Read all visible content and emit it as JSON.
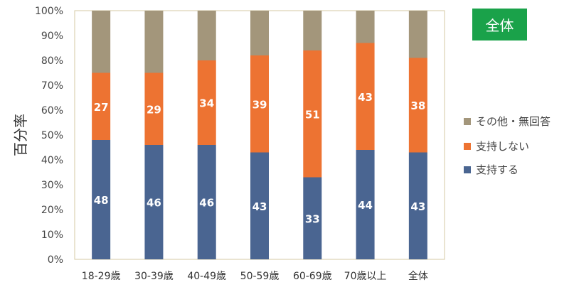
{
  "badge": {
    "label": "全体",
    "color": "#1aa24a"
  },
  "chart_data": {
    "type": "bar",
    "stacked": true,
    "ylabel": "百分率",
    "ylim": [
      0,
      100
    ],
    "yticks": [
      "0%",
      "10%",
      "20%",
      "30%",
      "40%",
      "50%",
      "60%",
      "70%",
      "80%",
      "90%",
      "100%"
    ],
    "categories": [
      "18-29歳",
      "30-39歳",
      "40-49歳",
      "50-59歳",
      "60-69歳",
      "70歳以上",
      "全体"
    ],
    "series": [
      {
        "name": "支持する",
        "color": "#4a6591",
        "values": [
          48,
          46,
          46,
          43,
          33,
          44,
          43
        ]
      },
      {
        "name": "支持しない",
        "color": "#ed7332",
        "values": [
          27,
          29,
          34,
          39,
          51,
          43,
          38
        ]
      },
      {
        "name": "その他・無回答",
        "color": "#a3967b",
        "values": [
          25,
          25,
          20,
          18,
          16,
          13,
          19
        ]
      }
    ],
    "data_labels_shown_for": [
      "支持する",
      "支持しない"
    ],
    "legend": {
      "position": "right",
      "order": [
        "その他・無回答",
        "支持しない",
        "支持する"
      ]
    },
    "grid": false
  }
}
